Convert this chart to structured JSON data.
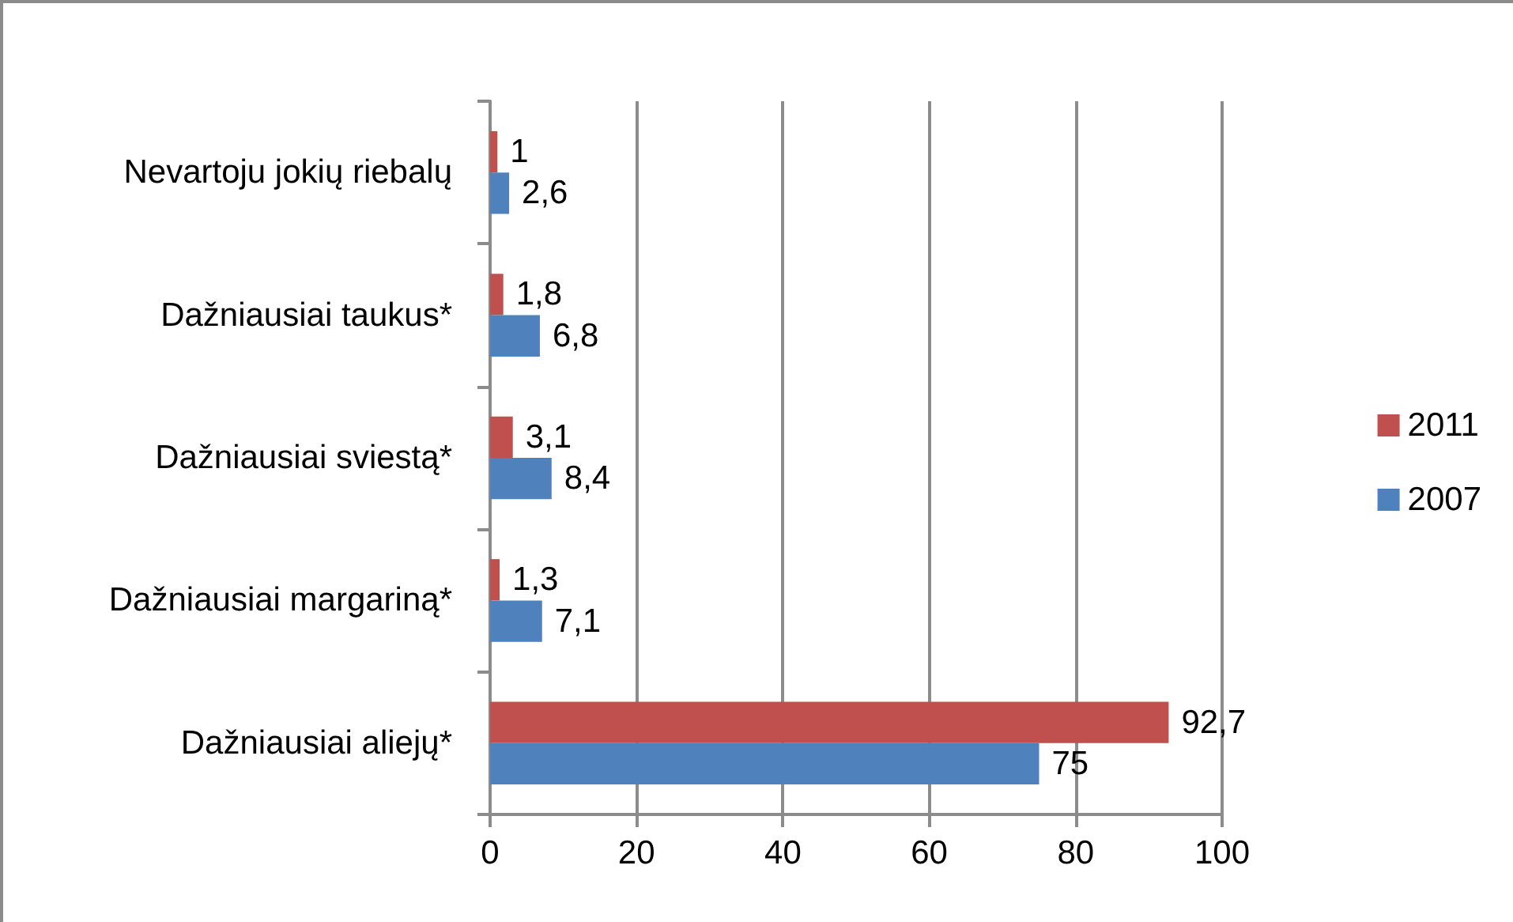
{
  "chart_data": {
    "type": "bar",
    "orientation": "horizontal",
    "categories": [
      "Nevartoju jokių riebalų",
      "Dažniausiai taukus*",
      "Dažniausiai sviestą*",
      "Dažniausiai margariną*",
      "Dažniausiai aliejų*"
    ],
    "series": [
      {
        "name": "2011",
        "color": "#c0504d",
        "values": [
          1,
          1.8,
          3.1,
          1.3,
          92.7
        ],
        "value_labels": [
          "1",
          "1,8",
          "3,1",
          "1,3",
          "92,7"
        ]
      },
      {
        "name": "2007",
        "color": "#4f81bd",
        "values": [
          2.6,
          6.8,
          8.4,
          7.1,
          75
        ],
        "value_labels": [
          "2,6",
          "6,8",
          "8,4",
          "7,1",
          "75"
        ]
      }
    ],
    "xlim": [
      0,
      100
    ],
    "xticks": [
      0,
      20,
      40,
      60,
      80,
      100
    ],
    "grid": "x",
    "legend": "right"
  }
}
